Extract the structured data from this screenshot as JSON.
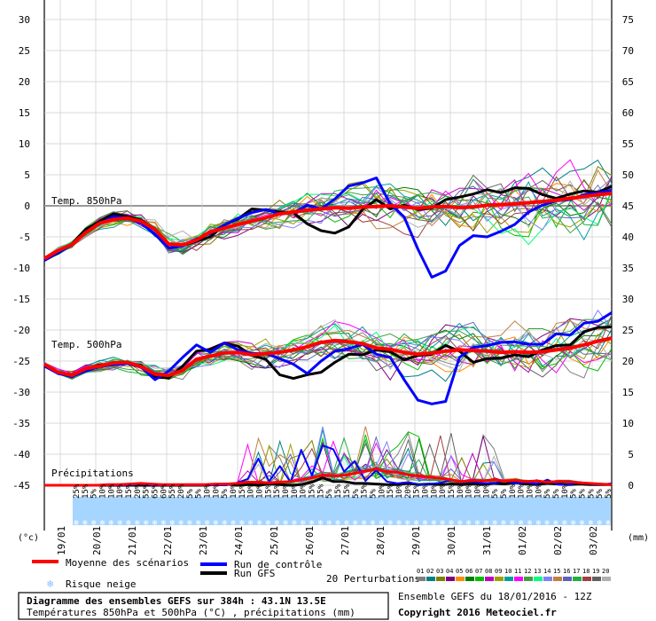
{
  "chart_data": {
    "type": "line",
    "title": "Diagramme des ensembles GEFS sur 384h : 43.1N 13.5E",
    "subtitle": "Températures 850hPa et 500hPa (°C) , précipitations (mm)",
    "run_info": "Ensemble GEFS du 18/01/2016 - 12Z",
    "copyright": "Copyright 2016 Meteociel.fr",
    "left_unit": "(°c)",
    "right_unit": "(mm)",
    "left_axis": {
      "ticks": [
        30,
        25,
        20,
        15,
        10,
        5,
        0,
        -5,
        -10,
        -15,
        -20,
        -25,
        -30,
        -35,
        -40,
        -45
      ],
      "ylim": [
        -45,
        30
      ]
    },
    "right_axis": {
      "ticks": [
        75,
        70,
        65,
        60,
        55,
        50,
        45,
        40,
        35,
        30,
        25,
        20,
        15,
        10,
        5,
        0
      ],
      "ylim": [
        0,
        75
      ]
    },
    "dates": [
      "19/01",
      "20/01",
      "21/01",
      "22/01",
      "23/01",
      "24/01",
      "25/01",
      "26/01",
      "27/01",
      "28/01",
      "29/01",
      "30/01",
      "31/01",
      "01/02",
      "02/02",
      "03/02"
    ],
    "panel_labels": [
      "Temp. 850hPa",
      "Temp. 500hPa",
      "Précipitations"
    ],
    "snow_risk": [
      "25%",
      "15%",
      "5%",
      "10%",
      "10%",
      "10%",
      "15%",
      "20%",
      "55%",
      "65%",
      "60%",
      "55%",
      "20%",
      "5%",
      "5%",
      "10%",
      "10%",
      "5%",
      "10%",
      "15%",
      "10%",
      "10%",
      "15%",
      "15%",
      "10%",
      "10%",
      "10%",
      "15%",
      "15%",
      "5%",
      "15%",
      "15%",
      "5%",
      "15%",
      "5%",
      "10%",
      "15%",
      "10%",
      "20%",
      "15%",
      "10%",
      "10%",
      "10%",
      "15%",
      "10%",
      "10%",
      "10%",
      "10%",
      "5%",
      "5%",
      "10%",
      "10%",
      "10%",
      "10%",
      "5%",
      "5%",
      "10%",
      "5%",
      "5%",
      "5%",
      "5%",
      "5%"
    ],
    "t850_mean": [
      -8.5,
      -7.2,
      -6.2,
      -4.3,
      -2.8,
      -2.2,
      -2.0,
      -2.5,
      -3.8,
      -6.2,
      -6.3,
      -5.5,
      -4.2,
      -3.6,
      -3.0,
      -2.5,
      -1.9,
      -1.3,
      -1.0,
      -0.7,
      -0.5,
      -0.3,
      -0.4,
      -0.2,
      -0.1,
      0.0,
      -0.2,
      -0.4,
      -0.2,
      -0.1,
      -0.3,
      -0.2,
      0.1,
      0.2,
      0.3,
      0.5,
      0.7,
      0.9,
      1.2,
      1.5,
      1.8,
      2.0
    ],
    "t850_control": [
      -8.8,
      -7.5,
      -6.3,
      -4.2,
      -2.9,
      -1.7,
      -2.0,
      -2.8,
      -4.6,
      -6.8,
      -6.5,
      -5.3,
      -4.4,
      -3.1,
      -2.0,
      -1.1,
      -0.6,
      -1.3,
      -1.1,
      0.1,
      -0.5,
      1.1,
      3.2,
      3.7,
      4.5,
      0.3,
      -1.8,
      -7.0,
      -11.5,
      -10.5,
      -6.4,
      -4.8,
      -5.0,
      -4.1,
      -3.0,
      -1.0,
      0.1,
      0.8,
      1.0,
      1.8,
      2.1,
      2.5
    ],
    "t850_gfs": [
      -8.8,
      -7.6,
      -6.1,
      -3.8,
      -2.5,
      -1.3,
      -1.7,
      -2.3,
      -3.8,
      -6.2,
      -6.4,
      -5.7,
      -5.0,
      -3.1,
      -2.1,
      -0.5,
      -0.7,
      -1.0,
      -1.1,
      -2.9,
      -4.0,
      -4.4,
      -3.4,
      -0.6,
      1.0,
      -0.5,
      0.1,
      -0.6,
      -0.4,
      1.0,
      1.4,
      1.9,
      2.6,
      2.1,
      2.9,
      2.8,
      1.8,
      1.2,
      1.9,
      2.4,
      2.2,
      3.1
    ],
    "t500_mean": [
      -25.5,
      -26.8,
      -27.3,
      -26.2,
      -25.8,
      -25.3,
      -25.2,
      -25.9,
      -27.1,
      -27.3,
      -26.5,
      -24.7,
      -24.2,
      -23.7,
      -23.6,
      -24.0,
      -23.8,
      -23.6,
      -23.2,
      -22.7,
      -22.0,
      -21.7,
      -21.9,
      -22.2,
      -22.9,
      -23.1,
      -23.6,
      -23.9,
      -23.7,
      -23.4,
      -23.2,
      -23.3,
      -23.4,
      -23.6,
      -23.5,
      -23.6,
      -23.5,
      -23.2,
      -22.9,
      -22.4,
      -21.8,
      -21.3
    ],
    "t500_control": [
      -25.8,
      -27.0,
      -27.5,
      -26.6,
      -25.9,
      -25.6,
      -25.4,
      -26.0,
      -28.0,
      -26.6,
      -24.4,
      -22.4,
      -23.6,
      -22.1,
      -23.2,
      -23.8,
      -23.8,
      -24.6,
      -25.5,
      -27.0,
      -25.0,
      -23.4,
      -23.0,
      -22.3,
      -23.9,
      -24.4,
      -28.0,
      -31.3,
      -31.9,
      -31.5,
      -24.4,
      -22.8,
      -22.5,
      -22.0,
      -21.9,
      -22.3,
      -22.3,
      -20.6,
      -20.8,
      -18.9,
      -18.6,
      -17.2
    ],
    "t500_gfs": [
      -25.8,
      -26.9,
      -27.5,
      -26.3,
      -25.6,
      -25.5,
      -25.3,
      -25.7,
      -27.6,
      -27.7,
      -25.8,
      -23.4,
      -23.1,
      -22.1,
      -22.6,
      -24.1,
      -24.7,
      -27.2,
      -27.8,
      -27.2,
      -26.8,
      -25.2,
      -23.9,
      -24.0,
      -23.2,
      -23.5,
      -24.8,
      -24.1,
      -23.9,
      -22.5,
      -23.4,
      -25.2,
      -24.6,
      -24.5,
      -24.0,
      -24.3,
      -23.2,
      -22.5,
      -22.4,
      -20.3,
      -19.6,
      -19.5
    ],
    "precip_mean": [
      0,
      0,
      0,
      0,
      0,
      0,
      0.1,
      0.1,
      0.2,
      0.3,
      0.2,
      0.1,
      0.1,
      0.1,
      0.1,
      0.1,
      0.2,
      0.2,
      0.3,
      0.5,
      0.5,
      0.4,
      0.5,
      0.6,
      0.9,
      1.2,
      1.6,
      1.5,
      1.6,
      1.9,
      2.3,
      2.6,
      2.2,
      2.1,
      1.7,
      1.5,
      1.3,
      1.1,
      0.9,
      0.6,
      0.8,
      0.7,
      0.9,
      0.7,
      0.8,
      0.6,
      0.7,
      0.5,
      0.6,
      0.6,
      0.4,
      0.3,
      0.2,
      0.1
    ],
    "precip_control": [
      0,
      0,
      0,
      0,
      0,
      0,
      0,
      0,
      0,
      0.2,
      0,
      0,
      0,
      0,
      0,
      0,
      0,
      0,
      0.4,
      1.0,
      4.3,
      0.6,
      3.1,
      0.5,
      5.7,
      1.6,
      6.4,
      5.8,
      2.2,
      3.9,
      0.7,
      2.4,
      0.6,
      0.3,
      0.5,
      0.1,
      0.2,
      0.4,
      0.8,
      0.5,
      0.6,
      0.3,
      0.3,
      0.8,
      0.3,
      0.5,
      0.2,
      0.9,
      0.1,
      0.1,
      0.5,
      0.2,
      0.1,
      0.3
    ],
    "precip_gfs": [
      0,
      0,
      0,
      0,
      0,
      0,
      0,
      0,
      0,
      0,
      0,
      0,
      0,
      0,
      0,
      0,
      0.1,
      0.2,
      0,
      0.1,
      0,
      0.2,
      0.1,
      0,
      0.1,
      0.5,
      1.2,
      0.6,
      0.6,
      0.3,
      0.3,
      0.2,
      0.1,
      0.1,
      0.3,
      0.1,
      0.2,
      0.1,
      0.2,
      0.1,
      0.2,
      0.1,
      0.3,
      0.2,
      0.4,
      0.2,
      0.1,
      0.3,
      0.2,
      0.1,
      0.2,
      0.1,
      0.1,
      0.1
    ],
    "legend": {
      "mean": "Moyenne des scénarios",
      "control": "Run de contrôle",
      "gfs": "Run GFS",
      "perturbations": "20 Perturbations",
      "snow": "Risque neige"
    },
    "perturbation_ids": [
      "01",
      "02",
      "03",
      "04",
      "05",
      "06",
      "07",
      "08",
      "09",
      "10",
      "11",
      "12",
      "13",
      "14",
      "15",
      "16",
      "17",
      "18",
      "19",
      "20"
    ],
    "colors": {
      "mean": "#ff0000",
      "control": "#0000ff",
      "gfs": "#000000",
      "grid": "#000000",
      "snow_band": "#a6d5ff",
      "perturbations": [
        "#808080",
        "#008080",
        "#808000",
        "#800080",
        "#ff8c00",
        "#008000",
        "#00c000",
        "#c000c0",
        "#a0a000",
        "#00a0a0",
        "#ff00ff",
        "#40a040",
        "#00ff80",
        "#8080ff",
        "#c08040",
        "#6060c0",
        "#20b040",
        "#a04040",
        "#606060",
        "#b0b0b0"
      ]
    }
  }
}
